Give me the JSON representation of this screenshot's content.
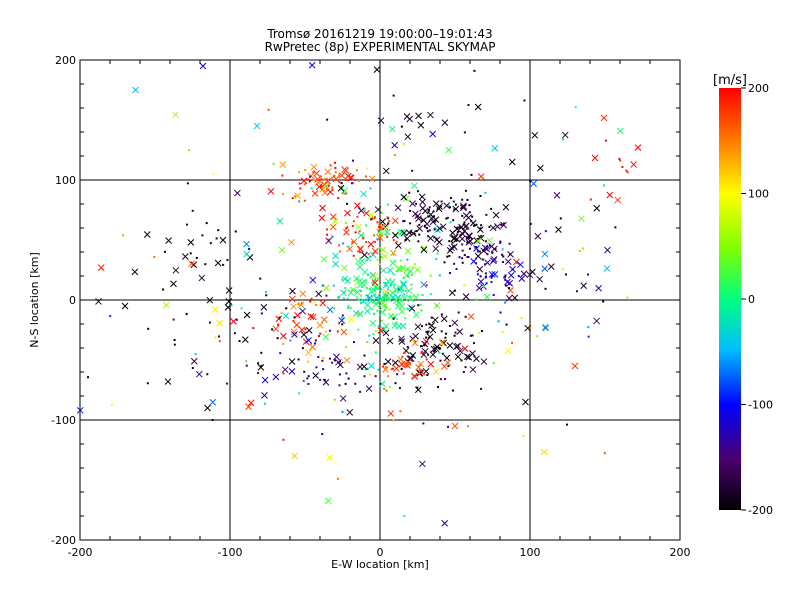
{
  "chart_data": {
    "type": "scatter",
    "title": "Tromsø 20161219 19:00:00–19:01:43",
    "subtitle": "RwPretec (8p) EXPERIMENTAL SKYMAP",
    "xlabel": "E-W location [km]",
    "ylabel": "N-S location [km]",
    "xlim": [
      -200,
      200
    ],
    "ylim": [
      -200,
      200
    ],
    "xticks": [
      -200,
      -100,
      0,
      100,
      200
    ],
    "yticks": [
      -200,
      -100,
      0,
      100,
      200
    ],
    "grid": true,
    "colorbar": {
      "label": "[m/s]",
      "min": -200,
      "max": 200,
      "ticks": [
        200,
        100,
        0,
        -100,
        -200
      ],
      "colormap": [
        "#000000",
        "#4b006e",
        "#0000ff",
        "#00bfff",
        "#00ff7f",
        "#7fff00",
        "#ffff00",
        "#ff7f00",
        "#ff0000"
      ]
    },
    "clusters": [
      {
        "cx": 0,
        "cy": 3,
        "sx": 14,
        "sy": 12,
        "v": 0,
        "dv": 30,
        "n": 140
      },
      {
        "cx": 5,
        "cy": 30,
        "sx": 20,
        "sy": 28,
        "v": 20,
        "dv": 60,
        "n": 70
      },
      {
        "cx": 35,
        "cy": 68,
        "sx": 20,
        "sy": 12,
        "v": -185,
        "dv": 25,
        "n": 120
      },
      {
        "cx": 58,
        "cy": 48,
        "sx": 14,
        "sy": 10,
        "v": -185,
        "dv": 25,
        "n": 60
      },
      {
        "cx": 80,
        "cy": 22,
        "sx": 16,
        "sy": 12,
        "v": -140,
        "dv": 50,
        "n": 50
      },
      {
        "cx": -38,
        "cy": 100,
        "sx": 14,
        "sy": 8,
        "v": 175,
        "dv": 40,
        "n": 70
      },
      {
        "cx": -12,
        "cy": 55,
        "sx": 12,
        "sy": 10,
        "v": 185,
        "dv": 25,
        "n": 45
      },
      {
        "cx": 35,
        "cy": -35,
        "sx": 16,
        "sy": 18,
        "v": -185,
        "dv": 25,
        "n": 90
      },
      {
        "cx": 20,
        "cy": -55,
        "sx": 14,
        "sy": 12,
        "v": 180,
        "dv": 30,
        "n": 40
      },
      {
        "cx": -45,
        "cy": -20,
        "sx": 14,
        "sy": 14,
        "v": 170,
        "dv": 50,
        "n": 40
      },
      {
        "cx": -120,
        "cy": 20,
        "sx": 20,
        "sy": 35,
        "v": -190,
        "dv": 20,
        "n": 40
      },
      {
        "cx": -70,
        "cy": -40,
        "sx": 30,
        "sy": 30,
        "v": -160,
        "dv": 60,
        "n": 50
      },
      {
        "cx": -20,
        "cy": -65,
        "sx": 20,
        "sy": 12,
        "v": -170,
        "dv": 40,
        "n": 30
      },
      {
        "cx": 0,
        "cy": 0,
        "sx": 80,
        "sy": 70,
        "v": 0,
        "dv": 200,
        "n": 200
      },
      {
        "cx": 40,
        "cy": 140,
        "sx": 40,
        "sy": 30,
        "v": -190,
        "dv": 20,
        "n": 25
      },
      {
        "cx": 160,
        "cy": 120,
        "sx": 12,
        "sy": 15,
        "v": 190,
        "dv": 15,
        "n": 12
      },
      {
        "cx": 120,
        "cy": 20,
        "sx": 25,
        "sy": 30,
        "v": -150,
        "dv": 80,
        "n": 25
      }
    ],
    "points": [
      {
        "x": -163,
        "y": 175,
        "v": -50
      },
      {
        "x": -118,
        "y": 195,
        "v": -120
      },
      {
        "x": -82,
        "y": 145,
        "v": -40
      },
      {
        "x": -2,
        "y": 192,
        "v": -200
      },
      {
        "x": 172,
        "y": 127,
        "v": 200
      },
      {
        "x": 50,
        "y": -105,
        "v": 170
      },
      {
        "x": -170,
        "y": -5,
        "v": -200
      },
      {
        "x": -115,
        "y": -90,
        "v": -200
      },
      {
        "x": -57,
        "y": -130,
        "v": 120
      },
      {
        "x": 97,
        "y": -85,
        "v": -200
      },
      {
        "x": 130,
        "y": -55,
        "v": 180
      }
    ]
  }
}
